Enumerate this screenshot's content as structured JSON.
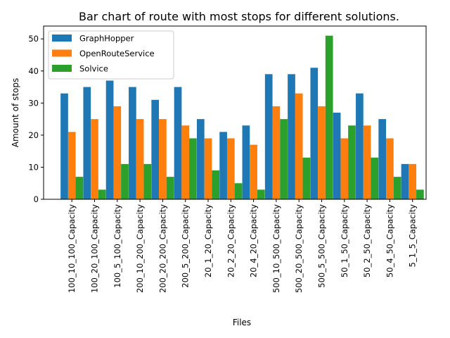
{
  "chart_data": {
    "type": "bar",
    "title": "Bar chart of route with most stops for different solutions.",
    "xlabel": "Files",
    "ylabel": "Amount of stops",
    "ylim": [
      0,
      54
    ],
    "yticks": [
      0,
      10,
      20,
      30,
      40,
      50
    ],
    "legend_position": "top-left",
    "grid": false,
    "categories": [
      "100_10_100_Capacity",
      "100_20_100_Capacity",
      "100_5_100_Capacity",
      "200_10_200_Capacity",
      "200_20_200_Capacity",
      "200_5_200_Capacity",
      "20_1_20_Capacity",
      "20_2_20_Capacity",
      "20_4_20_Capacity",
      "500_10_500_Capacity",
      "500_20_500_Capacity",
      "500_5_500_Capacity",
      "50_1_50_Capacity",
      "50_2_50_Capacity",
      "50_4_50_Capacity",
      "5_1_5_Capacity"
    ],
    "series": [
      {
        "name": "GraphHopper",
        "color": "#1f77b4",
        "values": [
          33,
          35,
          37,
          35,
          31,
          35,
          25,
          21,
          23,
          39,
          39,
          41,
          27,
          33,
          25,
          11
        ]
      },
      {
        "name": "OpenRouteService",
        "color": "#ff7f0e",
        "values": [
          21,
          25,
          29,
          25,
          25,
          23,
          19,
          19,
          17,
          29,
          33,
          29,
          19,
          23,
          19,
          11
        ]
      },
      {
        "name": "Solvice",
        "color": "#2ca02c",
        "values": [
          7,
          3,
          11,
          11,
          7,
          19,
          9,
          5,
          3,
          25,
          13,
          51,
          23,
          13,
          7,
          3
        ]
      }
    ]
  }
}
